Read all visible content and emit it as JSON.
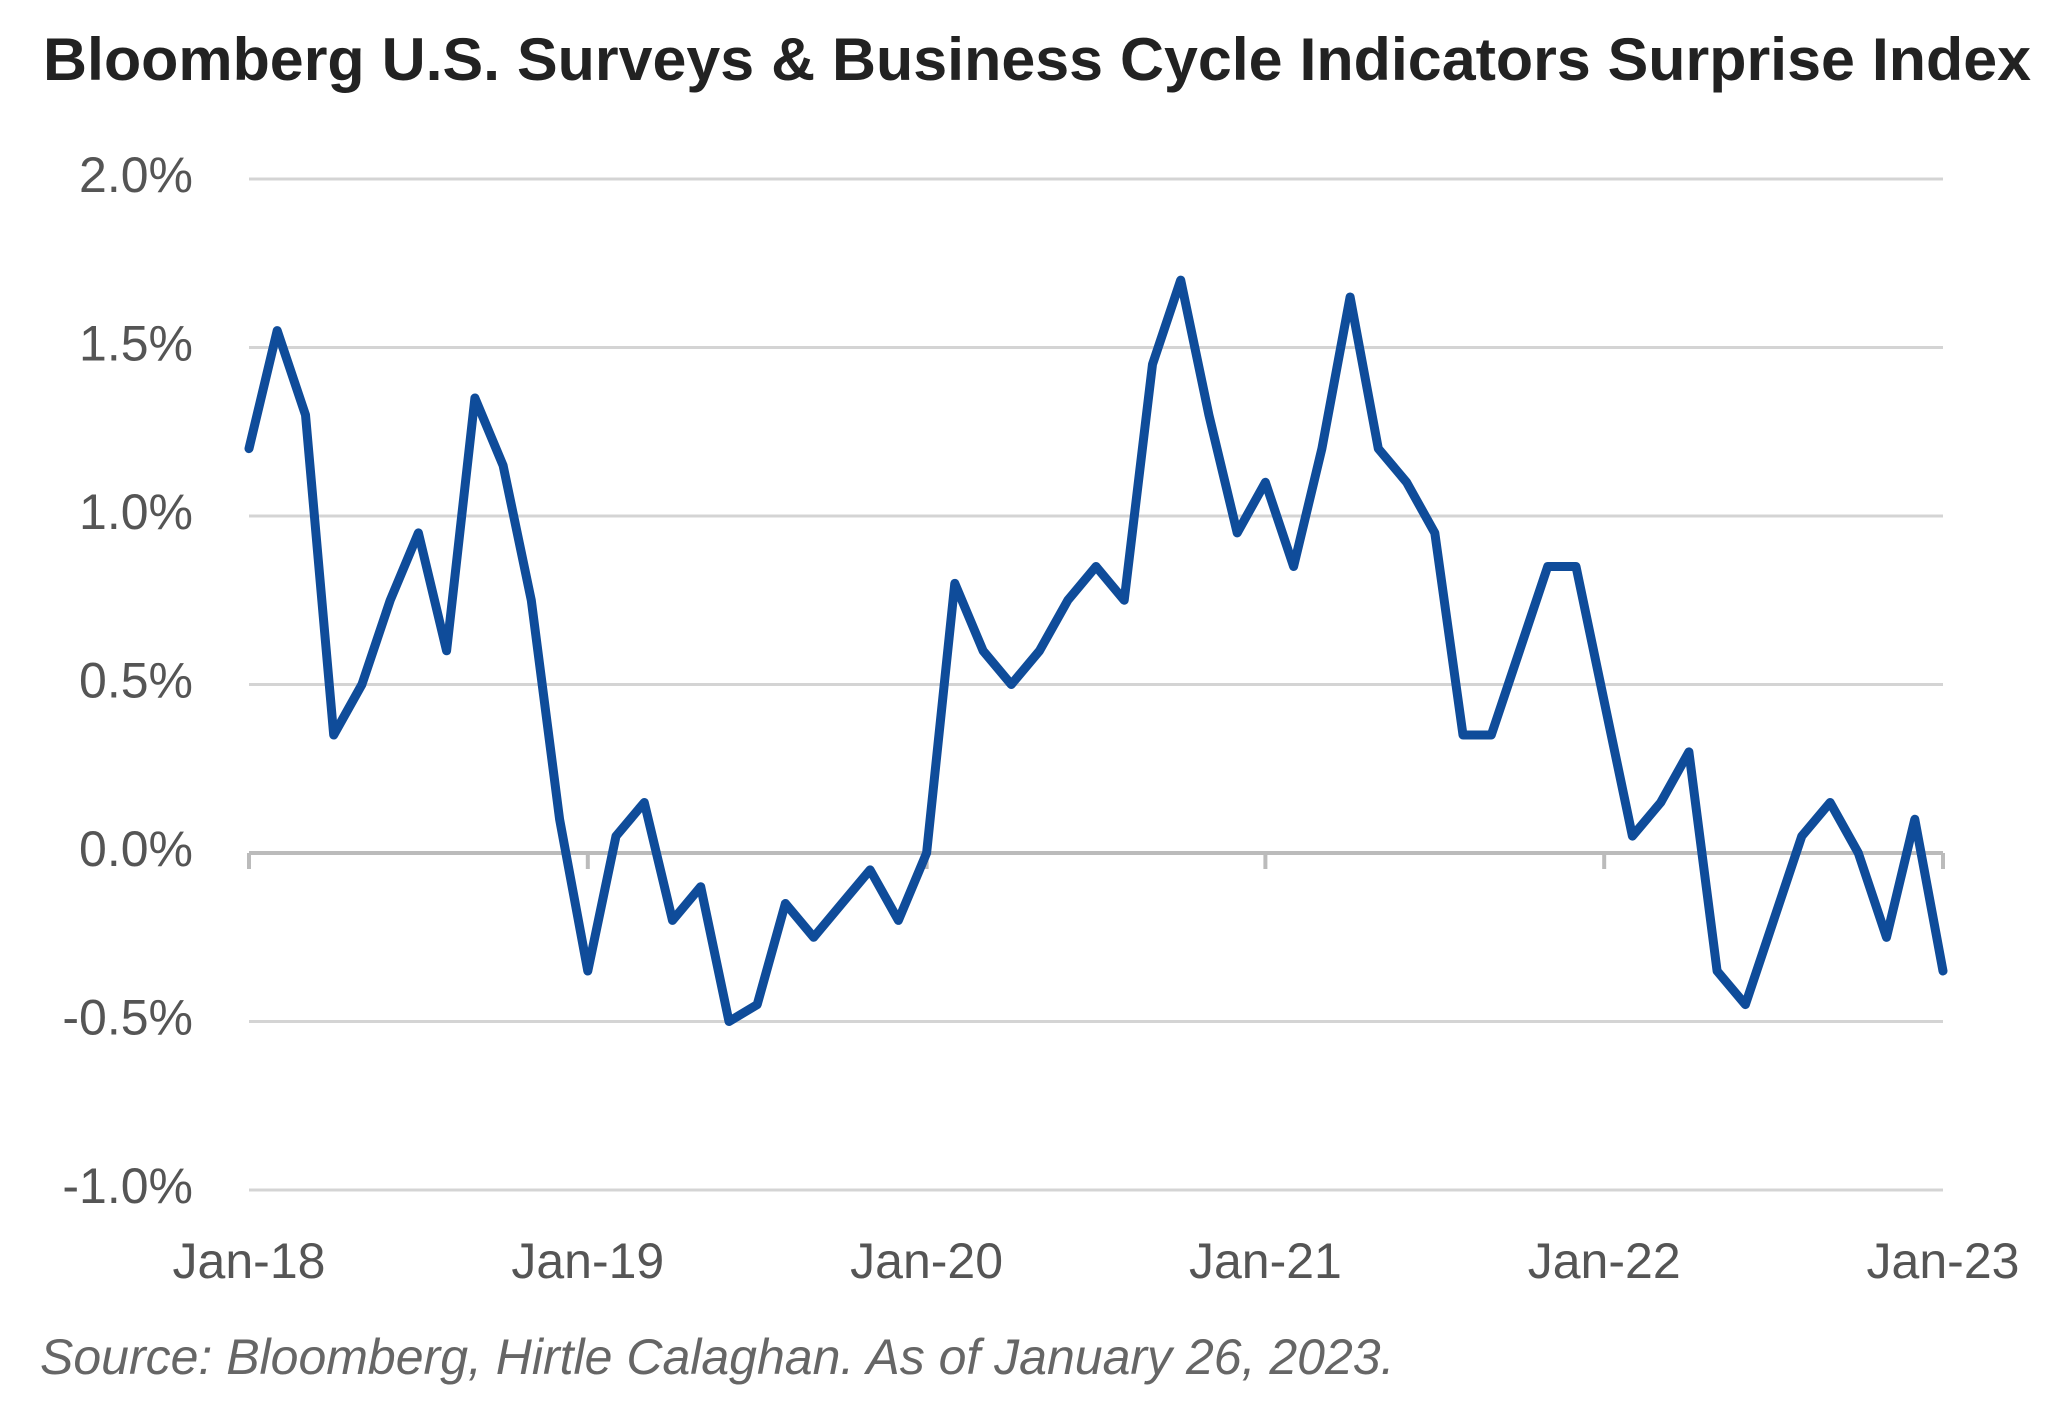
{
  "chart_data": {
    "type": "line",
    "title": "Bloomberg U.S. Surveys & Business Cycle Indicators Surprise Index",
    "source": "Source: Bloomberg, Hirtle Calaghan. As of January 26, 2023.",
    "x": [
      "2018-01",
      "2018-02",
      "2018-03",
      "2018-04",
      "2018-05",
      "2018-06",
      "2018-07",
      "2018-08",
      "2018-09",
      "2018-10",
      "2018-11",
      "2018-12",
      "2019-01",
      "2019-02",
      "2019-03",
      "2019-04",
      "2019-05",
      "2019-06",
      "2019-07",
      "2019-08",
      "2019-09",
      "2019-10",
      "2019-11",
      "2019-12",
      "2020-01",
      "2020-02",
      "2020-03",
      "2020-04",
      "2020-05",
      "2020-06",
      "2020-07",
      "2020-08",
      "2020-09",
      "2020-10",
      "2020-11",
      "2020-12",
      "2021-01",
      "2021-02",
      "2021-03",
      "2021-04",
      "2021-05",
      "2021-06",
      "2021-07",
      "2021-08",
      "2021-09",
      "2021-10",
      "2021-11",
      "2021-12",
      "2022-01",
      "2022-02",
      "2022-03",
      "2022-04",
      "2022-05",
      "2022-06",
      "2022-07",
      "2022-08",
      "2022-09",
      "2022-10",
      "2022-11",
      "2022-12",
      "2023-01"
    ],
    "series": [
      {
        "color": "#0f4c9a",
        "values": [
          1.2,
          1.55,
          1.3,
          0.35,
          0.5,
          0.75,
          0.95,
          0.6,
          1.35,
          1.15,
          0.75,
          0.1,
          -0.35,
          0.05,
          0.15,
          -0.2,
          -0.1,
          -0.5,
          -0.45,
          -0.15,
          -0.25,
          -0.15,
          -0.05,
          -0.2,
          0.0,
          0.8,
          0.6,
          0.5,
          0.6,
          0.75,
          0.85,
          0.75,
          1.45,
          1.7,
          1.3,
          0.95,
          1.1,
          0.85,
          1.2,
          1.65,
          1.2,
          1.1,
          0.95,
          0.35,
          0.35,
          0.6,
          0.85,
          0.85,
          0.45,
          0.05,
          0.15,
          0.3,
          -0.35,
          -0.45,
          -0.2,
          0.05,
          0.15,
          0.0,
          -0.25,
          0.1,
          -0.35
        ]
      }
    ],
    "xlim": [
      "2018-01",
      "2023-01"
    ],
    "xticks": [
      {
        "value": "2018-01",
        "label": "Jan-18"
      },
      {
        "value": "2019-01",
        "label": "Jan-19"
      },
      {
        "value": "2020-01",
        "label": "Jan-20"
      },
      {
        "value": "2021-01",
        "label": "Jan-21"
      },
      {
        "value": "2022-01",
        "label": "Jan-22"
      },
      {
        "value": "2023-01",
        "label": "Jan-23"
      }
    ],
    "ylim": [
      -1,
      2
    ],
    "yticks": [
      {
        "value": -1,
        "label": "-1.0%"
      },
      {
        "value": -0.5,
        "label": "-0.5%"
      },
      {
        "value": 0,
        "label": "0.0%"
      },
      {
        "value": 0.5,
        "label": "0.5%"
      },
      {
        "value": 1,
        "label": "1.0%"
      },
      {
        "value": 1.5,
        "label": "1.5%"
      },
      {
        "value": 2,
        "label": "2.0%"
      }
    ],
    "grid": true
  }
}
